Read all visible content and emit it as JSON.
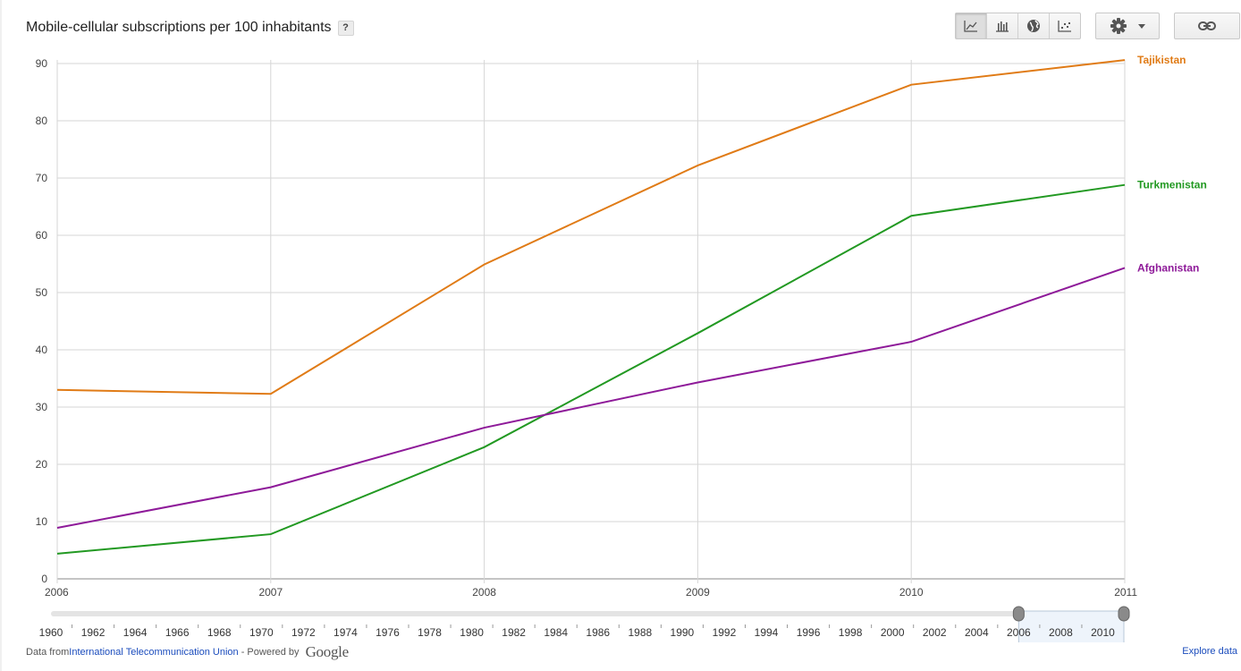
{
  "title": "Mobile-cellular subscriptions per 100 inhabitants",
  "help_label": "?",
  "toolbar": {
    "views": [
      {
        "icon": "line-chart-icon",
        "active": true
      },
      {
        "icon": "bar-chart-icon",
        "active": false
      },
      {
        "icon": "globe-icon",
        "active": false
      },
      {
        "icon": "scatter-icon",
        "active": false
      }
    ],
    "settings_icon": "gear-icon",
    "link_icon": "link-icon"
  },
  "chart_data": {
    "type": "line",
    "x": [
      2006,
      2007,
      2008,
      2009,
      2010,
      2011
    ],
    "xlim": [
      2006,
      2011
    ],
    "ylim": [
      0,
      90
    ],
    "y_ticks": [
      0,
      10,
      20,
      30,
      40,
      50,
      60,
      70,
      80,
      90
    ],
    "grid": true,
    "legend_placement": "right (inline labels at line ends)",
    "series": [
      {
        "name": "Tajikistan",
        "color": "#e07b16",
        "values": [
          33.0,
          32.3,
          54.9,
          72.2,
          86.3,
          90.6
        ]
      },
      {
        "name": "Turkmenistan",
        "color": "#229922",
        "values": [
          4.4,
          7.8,
          23.0,
          42.9,
          63.4,
          68.8
        ]
      },
      {
        "name": "Afghanistan",
        "color": "#8e1a99",
        "values": [
          8.9,
          16.0,
          26.4,
          34.3,
          41.4,
          54.3
        ]
      }
    ],
    "timeline": {
      "labels": [
        1960,
        1962,
        1964,
        1966,
        1968,
        1970,
        1972,
        1974,
        1976,
        1978,
        1980,
        1982,
        1984,
        1986,
        1988,
        1990,
        1992,
        1994,
        1996,
        1998,
        2000,
        2002,
        2004,
        2006,
        2008,
        2010
      ],
      "range": [
        1960,
        2011
      ],
      "selected": [
        2006,
        2011
      ]
    }
  },
  "footer": {
    "prefix": "Data from ",
    "source": "International Telecommunication Union",
    "powered": " - Powered by ",
    "brand": "Google",
    "explore": "Explore data"
  }
}
